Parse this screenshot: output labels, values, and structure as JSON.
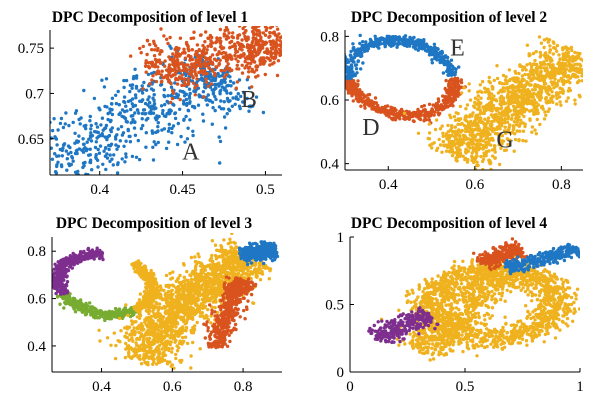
{
  "colors": {
    "blue": "#1f77c4",
    "orange": "#d9531e",
    "yellow": "#efb21e",
    "purple": "#7e2f8e",
    "green": "#77ac30"
  },
  "chart_data": [
    {
      "type": "scatter",
      "title": "DPC Decomposition of level 1",
      "xlim": [
        0.37,
        0.51
      ],
      "ylim": [
        0.61,
        0.77
      ],
      "xticks": [
        0.4,
        0.45,
        0.5
      ],
      "xtick_labels": [
        "0.4",
        "0.45",
        "0.5"
      ],
      "yticks": [
        0.65,
        0.7,
        0.75
      ],
      "ytick_labels": [
        "0.65",
        "0.7",
        "0.75"
      ],
      "series": [
        {
          "color": "blue",
          "shape": "band",
          "count": 700,
          "spine": [
            [
              0.37,
              0.62
            ],
            [
              0.4,
              0.65
            ],
            [
              0.43,
              0.685
            ],
            [
              0.46,
              0.71
            ],
            [
              0.475,
              0.72
            ]
          ],
          "width": 0.036
        },
        {
          "color": "orange",
          "shape": "band",
          "count": 650,
          "spine": [
            [
              0.43,
              0.725
            ],
            [
              0.46,
              0.735
            ],
            [
              0.49,
              0.75
            ],
            [
              0.51,
              0.755
            ]
          ],
          "width": 0.028
        }
      ],
      "annotations": [
        {
          "text": "A",
          "x": 0.455,
          "y": 0.627
        },
        {
          "text": "B",
          "x": 0.49,
          "y": 0.685
        }
      ]
    },
    {
      "type": "scatter",
      "title": "DPC Decomposition of level 2",
      "xlim": [
        0.3,
        0.85
      ],
      "ylim": [
        0.38,
        0.82
      ],
      "xticks": [
        0.4,
        0.6,
        0.8
      ],
      "xtick_labels": [
        "0.4",
        "0.6",
        "0.8"
      ],
      "yticks": [
        0.4,
        0.6,
        0.8
      ],
      "ytick_labels": [
        "0.4",
        "0.6",
        "0.8"
      ],
      "series": [
        {
          "color": "orange",
          "shape": "ring",
          "count": 500,
          "cx": 0.43,
          "cy": 0.67,
          "rx": 0.11,
          "ry": 0.13,
          "tilt": 0.95,
          "thickness": 0.025,
          "arc": [
            2.3,
            5.4
          ]
        },
        {
          "color": "blue",
          "shape": "ring",
          "count": 450,
          "cx": 0.43,
          "cy": 0.67,
          "rx": 0.11,
          "ry": 0.13,
          "tilt": 0.95,
          "thickness": 0.025,
          "arc": [
            -0.8,
            2.3
          ]
        },
        {
          "color": "yellow",
          "shape": "band",
          "count": 1300,
          "spine": [
            [
              0.56,
              0.42
            ],
            [
              0.6,
              0.5
            ],
            [
              0.66,
              0.57
            ],
            [
              0.72,
              0.62
            ],
            [
              0.78,
              0.68
            ],
            [
              0.83,
              0.74
            ]
          ],
          "width": 0.08
        }
      ],
      "annotations": [
        {
          "text": "E",
          "x": 0.56,
          "y": 0.74
        },
        {
          "text": "D",
          "x": 0.36,
          "y": 0.49
        },
        {
          "text": "G",
          "x": 0.67,
          "y": 0.45
        }
      ]
    },
    {
      "type": "scatter",
      "title": "DPC Decomposition of level 3",
      "xlim": [
        0.26,
        0.91
      ],
      "ylim": [
        0.29,
        0.86
      ],
      "xticks": [
        0.4,
        0.6,
        0.8
      ],
      "xtick_labels": [
        "0.4",
        "0.6",
        "0.8"
      ],
      "yticks": [
        0.4,
        0.6,
        0.8
      ],
      "ytick_labels": [
        "0.4",
        "0.6",
        "0.8"
      ],
      "series": [
        {
          "color": "green",
          "shape": "ring",
          "count": 350,
          "cx": 0.41,
          "cy": 0.66,
          "rx": 0.12,
          "ry": 0.14,
          "tilt": 0.95,
          "thickness": 0.025,
          "arc": [
            2.6,
            4.4
          ]
        },
        {
          "color": "yellow",
          "shape": "ring",
          "count": 350,
          "cx": 0.41,
          "cy": 0.66,
          "rx": 0.12,
          "ry": 0.14,
          "tilt": 0.95,
          "thickness": 0.025,
          "arc": [
            4.4,
            6.2
          ]
        },
        {
          "color": "purple",
          "shape": "ring",
          "count": 400,
          "cx": 0.41,
          "cy": 0.66,
          "rx": 0.12,
          "ry": 0.14,
          "tilt": 0.95,
          "thickness": 0.025,
          "arc": [
            0.6,
            2.6
          ]
        },
        {
          "color": "yellow",
          "shape": "band",
          "count": 1600,
          "spine": [
            [
              0.52,
              0.34
            ],
            [
              0.56,
              0.46
            ],
            [
              0.62,
              0.56
            ],
            [
              0.68,
              0.64
            ],
            [
              0.75,
              0.72
            ],
            [
              0.82,
              0.78
            ]
          ],
          "width": 0.09
        },
        {
          "color": "orange",
          "shape": "band",
          "count": 500,
          "spine": [
            [
              0.72,
              0.4
            ],
            [
              0.75,
              0.52
            ],
            [
              0.78,
              0.62
            ],
            [
              0.8,
              0.68
            ]
          ],
          "width": 0.035
        },
        {
          "color": "blue",
          "shape": "band",
          "count": 400,
          "spine": [
            [
              0.8,
              0.78
            ],
            [
              0.85,
              0.8
            ],
            [
              0.89,
              0.8
            ]
          ],
          "width": 0.035
        }
      ],
      "annotations": []
    },
    {
      "type": "scatter",
      "title": "DPC Decomposition of level 4",
      "xlim": [
        0,
        1
      ],
      "ylim": [
        0,
        1
      ],
      "xticks": [
        0,
        0.5,
        1
      ],
      "xtick_labels": [
        "0",
        "0.5",
        "1"
      ],
      "yticks": [
        0,
        0.5,
        1
      ],
      "ytick_labels": [
        "0",
        "0.5",
        "1"
      ],
      "series": [
        {
          "color": "yellow",
          "shape": "ring",
          "count": 1400,
          "cx": 0.62,
          "cy": 0.5,
          "rx": 0.28,
          "ry": 0.25,
          "tilt": 0.3,
          "thickness": 0.06,
          "arc": [
            0,
            6.2832
          ]
        },
        {
          "color": "yellow",
          "shape": "band",
          "count": 600,
          "spine": [
            [
              0.3,
              0.15
            ],
            [
              0.38,
              0.3
            ],
            [
              0.48,
              0.42
            ],
            [
              0.58,
              0.6
            ],
            [
              0.65,
              0.74
            ]
          ],
          "width": 0.12
        },
        {
          "color": "purple",
          "shape": "band",
          "count": 260,
          "spine": [
            [
              0.12,
              0.25
            ],
            [
              0.2,
              0.32
            ],
            [
              0.28,
              0.38
            ],
            [
              0.34,
              0.42
            ]
          ],
          "width": 0.07
        },
        {
          "color": "orange",
          "shape": "band",
          "count": 260,
          "spine": [
            [
              0.58,
              0.8
            ],
            [
              0.64,
              0.86
            ],
            [
              0.7,
              0.9
            ],
            [
              0.74,
              0.92
            ]
          ],
          "width": 0.06
        },
        {
          "color": "blue",
          "shape": "band",
          "count": 300,
          "spine": [
            [
              0.68,
              0.78
            ],
            [
              0.8,
              0.82
            ],
            [
              0.9,
              0.86
            ],
            [
              0.98,
              0.92
            ]
          ],
          "width": 0.05
        }
      ],
      "annotations": []
    }
  ]
}
